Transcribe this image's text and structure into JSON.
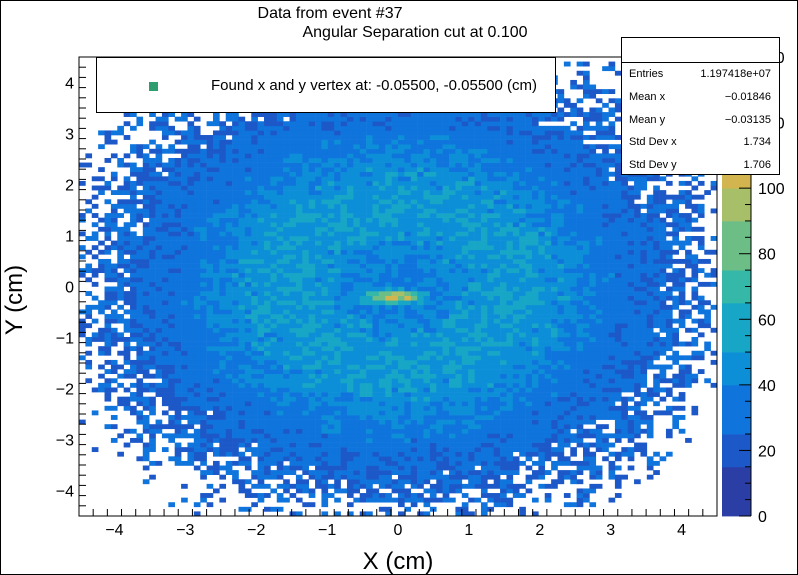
{
  "chart_data": {
    "type": "heatmap",
    "title": "Data from event #37",
    "subtitle": "Angular Separation cut at 0.100",
    "xlabel": "X (cm)",
    "ylabel": "Y (cm)",
    "xlim": [
      -4.5,
      4.5
    ],
    "ylim": [
      -4.5,
      4.5
    ],
    "x_ticks": [
      "−4",
      "−3",
      "−2",
      "−1",
      "0",
      "1",
      "2",
      "3",
      "4"
    ],
    "y_ticks": [
      "−4",
      "−3",
      "−2",
      "−1",
      "0",
      "1",
      "2",
      "3",
      "4"
    ],
    "colorbar": {
      "range": [
        0,
        140
      ],
      "ticks": [
        "0",
        "20",
        "40",
        "60",
        "80",
        "100",
        "120",
        "140"
      ],
      "palette": [
        "#2a3ea5",
        "#1d58c8",
        "#0f75dd",
        "#0d8fd8",
        "#17a6c6",
        "#35b8a8",
        "#6cbe86",
        "#a7bf68",
        "#d2b54f",
        "#f1c232",
        "#f8e21d"
      ]
    },
    "density_description": {
      "core_center": [
        -0.05,
        -0.2
      ],
      "core_peak_counts": 125,
      "ring_counts": 50,
      "edge_counts": 25
    },
    "legend": {
      "marker_color": "#2e9e6e",
      "text": "Found x and y vertex at: -0.05500, -0.05500 (cm)"
    },
    "stats": [
      {
        "key": "Entries",
        "value": "1.197418e+07"
      },
      {
        "key": "Mean x",
        "value": "−0.01846"
      },
      {
        "key": "Mean y",
        "value": "−0.03135"
      },
      {
        "key": "Std Dev x",
        "value": "1.734"
      },
      {
        "key": "Std Dev y",
        "value": "1.706"
      }
    ]
  }
}
